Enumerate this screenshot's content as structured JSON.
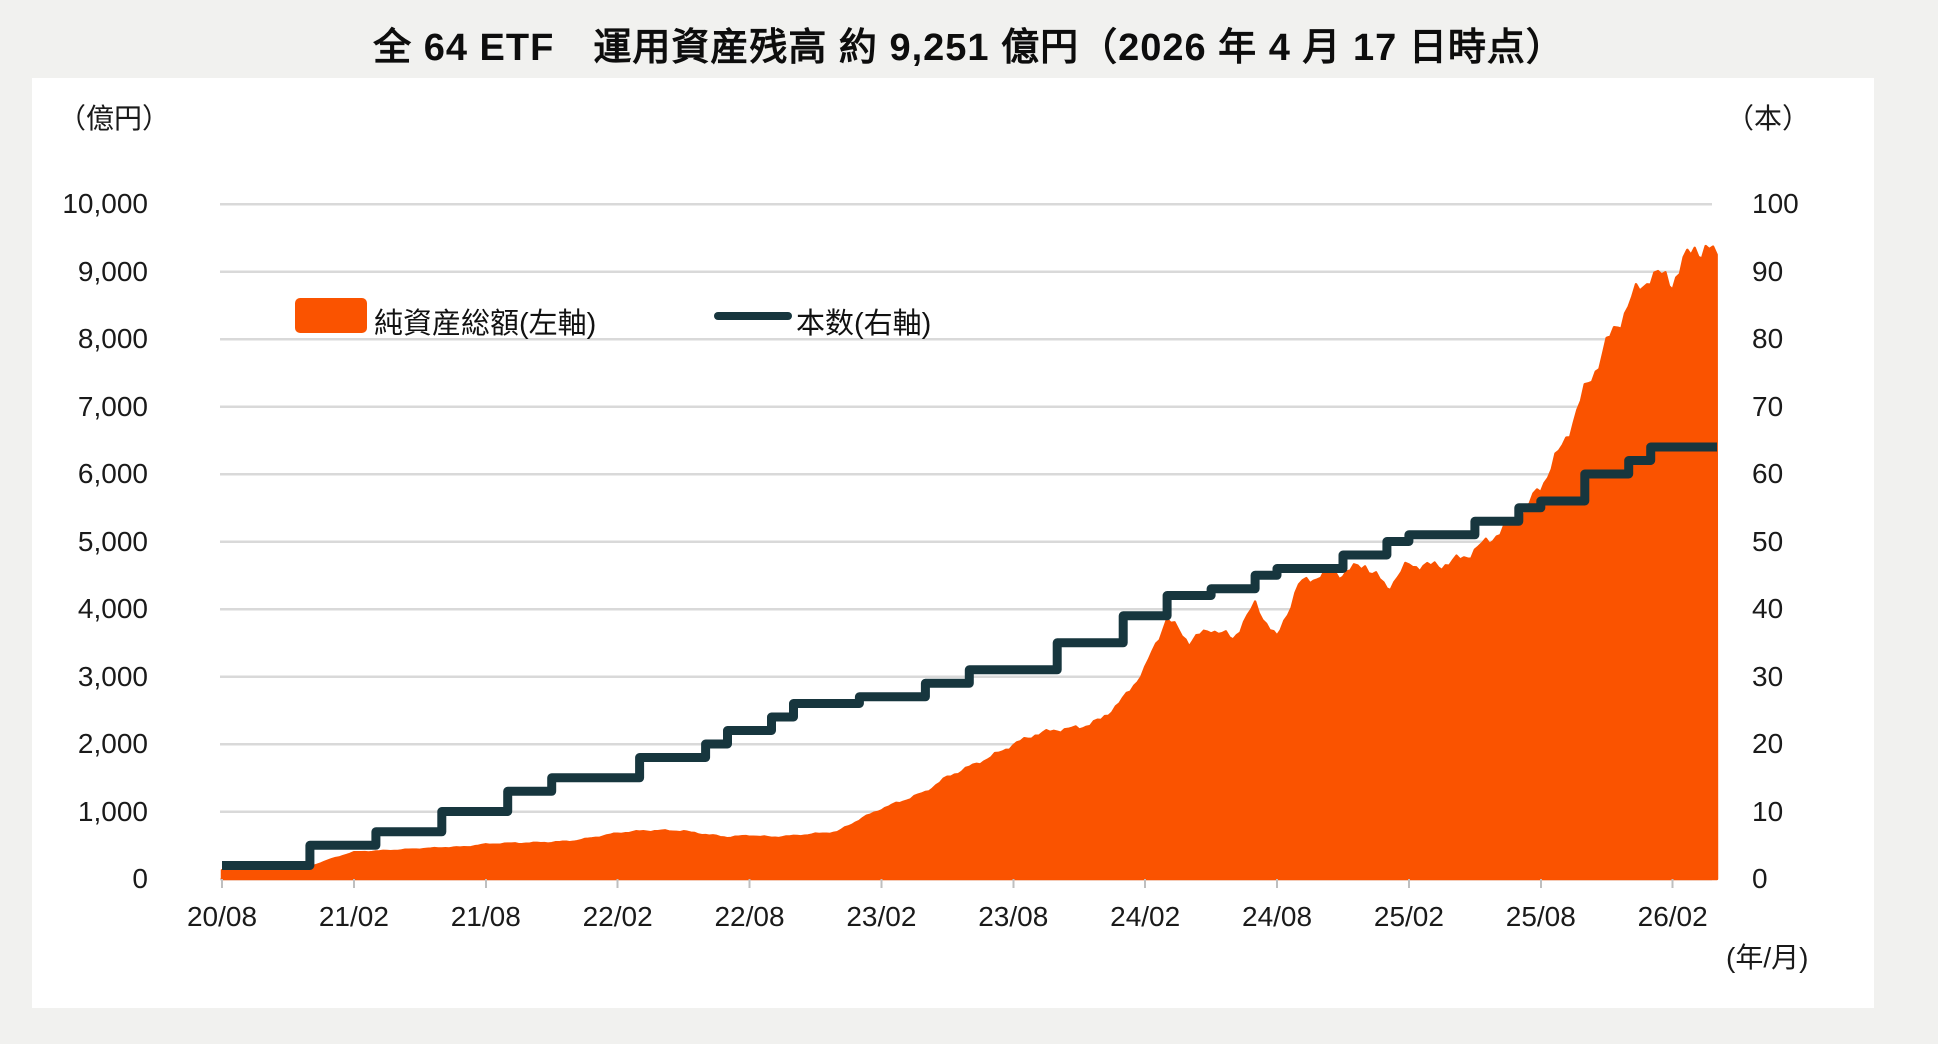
{
  "title": "全 64 ETF　運用資産残高 約 9,251 億円（2026 年 4 月 17 日時点）",
  "colors": {
    "area": "#fa5300",
    "line": "#17363e",
    "grid": "#d9d9d9",
    "tick": "#bfbfbf",
    "page_bg": "#f1f1ef",
    "panel_bg": "#ffffff",
    "text": "#1a1a1a"
  },
  "axes": {
    "left_unit": "（億円）",
    "right_unit": "（本）",
    "x_note": "(年/月)",
    "left_tick_labels": [
      "10,000",
      "9,000",
      "8,000",
      "7,000",
      "6,000",
      "5,000",
      "4,000",
      "3,000",
      "2,000",
      "1,000",
      "0"
    ],
    "right_tick_labels": [
      "100",
      "90",
      "80",
      "70",
      "60",
      "50",
      "40",
      "30",
      "20",
      "10",
      "0"
    ],
    "x_tick_labels": [
      "20/08",
      "21/02",
      "21/08",
      "22/02",
      "22/08",
      "23/02",
      "23/08",
      "24/02",
      "24/08",
      "25/02",
      "25/08",
      "26/02"
    ]
  },
  "legend": {
    "area_label": "純資産総額(左軸)",
    "line_label": "本数(右軸)"
  },
  "chart_data": {
    "type": "area",
    "subtype": "combo area + step line, dual axis",
    "title": "全 64 ETF　運用資産残高 約 9,251 億円（2026 年 4 月 17 日時点）",
    "xlabel": "(年/月)",
    "ylabel_left": "（億円）",
    "ylabel_right": "（本）",
    "ylim_left": [
      0,
      10000
    ],
    "ylim_right": [
      0,
      100
    ],
    "grid": true,
    "legend_position": "upper left inside plot",
    "x_monthly": [
      "2020/08",
      "2020/09",
      "2020/10",
      "2020/11",
      "2020/12",
      "2021/01",
      "2021/02",
      "2021/03",
      "2021/04",
      "2021/05",
      "2021/06",
      "2021/07",
      "2021/08",
      "2021/09",
      "2021/10",
      "2021/11",
      "2021/12",
      "2022/01",
      "2022/02",
      "2022/03",
      "2022/04",
      "2022/05",
      "2022/06",
      "2022/07",
      "2022/08",
      "2022/09",
      "2022/10",
      "2022/11",
      "2022/12",
      "2023/01",
      "2023/02",
      "2023/03",
      "2023/04",
      "2023/05",
      "2023/06",
      "2023/07",
      "2023/08",
      "2023/09",
      "2023/10",
      "2023/11",
      "2023/12",
      "2024/01",
      "2024/02",
      "2024/03",
      "2024/04",
      "2024/05",
      "2024/06",
      "2024/07",
      "2024/08",
      "2024/09",
      "2024/10",
      "2024/11",
      "2024/12",
      "2025/01",
      "2025/02",
      "2025/03",
      "2025/04",
      "2025/05",
      "2025/06",
      "2025/07",
      "2025/08",
      "2025/09",
      "2025/10",
      "2025/11",
      "2025/12",
      "2026/01",
      "2026/02",
      "2026/03",
      "2026/04"
    ],
    "series": [
      {
        "name": "純資産総額(左軸)",
        "type": "area",
        "axis": "left",
        "unit": "億円",
        "color": "#fa5300",
        "values": [
          130,
          140,
          145,
          155,
          175,
          290,
          390,
          405,
          420,
          440,
          455,
          465,
          505,
          520,
          525,
          535,
          555,
          610,
          670,
          700,
          710,
          700,
          650,
          610,
          635,
          610,
          630,
          660,
          690,
          870,
          1030,
          1150,
          1280,
          1500,
          1650,
          1800,
          1980,
          2130,
          2200,
          2230,
          2350,
          2650,
          3100,
          3850,
          3500,
          3700,
          3550,
          4050,
          3550,
          4350,
          4500,
          4520,
          4650,
          4300,
          4650,
          4620,
          4680,
          4850,
          5100,
          5300,
          5800,
          6400,
          7200,
          7900,
          8500,
          8950,
          8850,
          9350,
          9251
        ],
        "final_value_note": "約9,251億円（2026/04/17時点）"
      },
      {
        "name": "本数(右軸)",
        "type": "step-line",
        "axis": "right",
        "unit": "本",
        "color": "#17363e",
        "values": [
          2,
          2,
          2,
          2,
          5,
          5,
          5,
          7,
          7,
          7,
          10,
          10,
          10,
          13,
          13,
          15,
          15,
          15,
          15,
          18,
          18,
          18,
          20,
          22,
          22,
          24,
          26,
          26,
          26,
          27,
          27,
          27,
          29,
          29,
          31,
          31,
          31,
          31,
          35,
          35,
          35,
          39,
          39,
          42,
          42,
          43,
          43,
          45,
          46,
          46,
          46,
          48,
          48,
          50,
          51,
          51,
          51,
          53,
          53,
          55,
          56,
          56,
          60,
          60,
          62,
          64,
          64,
          64,
          64
        ],
        "final_value_note": "全64 ETF"
      }
    ]
  }
}
